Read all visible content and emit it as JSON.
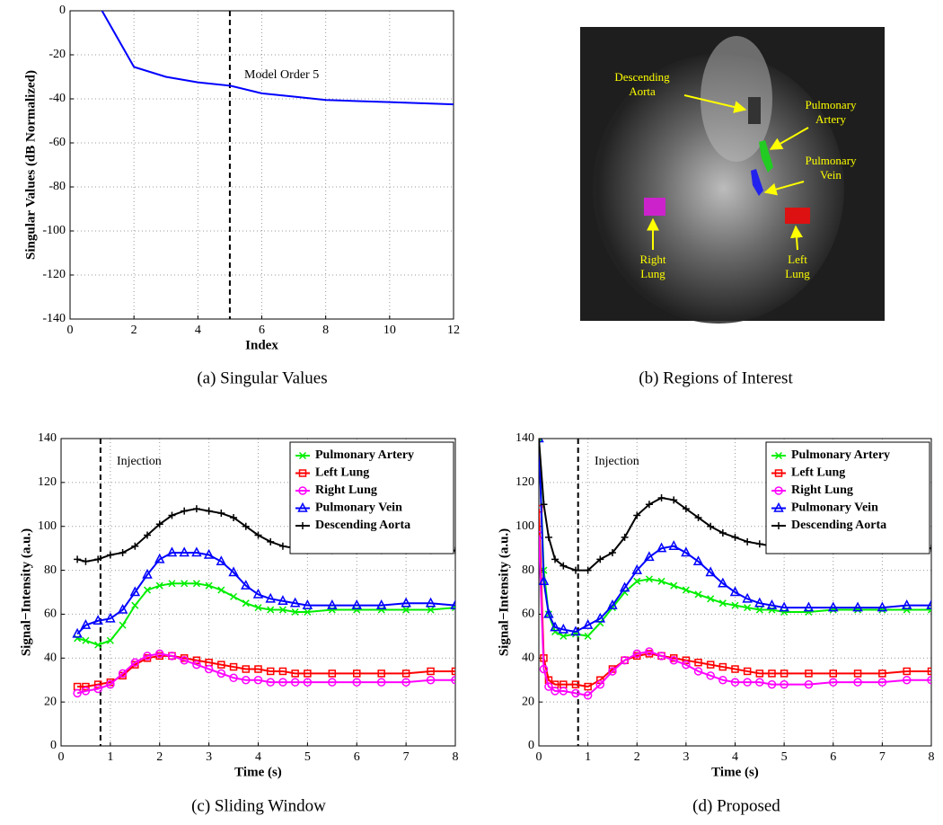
{
  "chart_data": [
    {
      "type": "line",
      "caption": "(a) Singular Values",
      "xlabel": "Index",
      "ylabel": "Singular Values (dB Normalized)",
      "xlim": [
        0,
        12
      ],
      "ylim": [
        -140,
        0
      ],
      "xticks": [
        0,
        2,
        4,
        6,
        8,
        10,
        12
      ],
      "yticks": [
        -140,
        -120,
        -100,
        -80,
        -60,
        -40,
        -20,
        0
      ],
      "grid": true,
      "vline": 5,
      "annotation": "Model Order 5",
      "x": [
        1,
        2,
        3,
        4,
        5,
        6,
        7,
        8,
        9,
        10,
        11,
        12
      ],
      "series": [
        {
          "color": "#0000ff",
          "marker": "none",
          "values": [
            0,
            -25.5,
            -30,
            -32.5,
            -34,
            -37.5,
            -39,
            -40.5,
            -41,
            -41.5,
            -42,
            -42.5
          ]
        }
      ]
    },
    {
      "type": "image",
      "caption": "(b) Regions of Interest",
      "labels": [
        {
          "text": [
            "Descending",
            "Aorta"
          ],
          "color": "#ffff00"
        },
        {
          "text": [
            "Pulmonary",
            "Artery"
          ],
          "color": "#ffff00"
        },
        {
          "text": [
            "Pulmonary",
            "Vein"
          ],
          "color": "#ffff00"
        },
        {
          "text": [
            "Right",
            "Lung"
          ],
          "color": "#ffff00"
        },
        {
          "text": [
            "Left",
            "Lung"
          ],
          "color": "#ffff00"
        }
      ]
    },
    {
      "type": "line",
      "caption": "(c) Sliding Window",
      "xlabel": "Time (s)",
      "ylabel": "Signal−Intensity (a.u.)",
      "xlim": [
        0,
        8
      ],
      "ylim": [
        0,
        140
      ],
      "xticks": [
        0,
        1,
        2,
        3,
        4,
        5,
        6,
        7,
        8
      ],
      "yticks": [
        0,
        20,
        40,
        60,
        80,
        100,
        120,
        140
      ],
      "grid": true,
      "vline": 0.8,
      "annotation": "Injection",
      "legend": "upper right",
      "x": [
        0.33,
        0.5,
        0.75,
        1.0,
        1.25,
        1.5,
        1.75,
        2.0,
        2.25,
        2.5,
        2.75,
        3.0,
        3.25,
        3.5,
        3.75,
        4.0,
        4.25,
        4.5,
        4.75,
        5.0,
        5.5,
        6.0,
        6.5,
        7.0,
        7.5,
        8.0
      ],
      "series": [
        {
          "name": "Pulmonary Artery",
          "color": "#00ee00",
          "marker": "x",
          "values": [
            49,
            48,
            46,
            48,
            55,
            64,
            71,
            73,
            74,
            74,
            74,
            73,
            71,
            68,
            65,
            63,
            62,
            62,
            61,
            61,
            62,
            62,
            62,
            62,
            62,
            63
          ]
        },
        {
          "name": "Left Lung",
          "color": "#ff0000",
          "marker": "s",
          "values": [
            27,
            27,
            28,
            29,
            32,
            37,
            40,
            41,
            41,
            40,
            39,
            38,
            37,
            36,
            35,
            35,
            34,
            34,
            33,
            33,
            33,
            33,
            33,
            33,
            34,
            34
          ]
        },
        {
          "name": "Right Lung",
          "color": "#ff00ff",
          "marker": "o",
          "values": [
            24,
            25,
            26,
            28,
            33,
            38,
            41,
            42,
            41,
            39,
            37,
            35,
            33,
            31,
            30,
            30,
            29,
            29,
            29,
            29,
            29,
            29,
            29,
            29,
            30,
            30
          ]
        },
        {
          "name": "Pulmonary Vein",
          "color": "#0000ff",
          "marker": "^",
          "values": [
            51,
            55,
            57,
            58,
            62,
            70,
            78,
            85,
            88,
            88,
            88,
            87,
            84,
            79,
            73,
            69,
            67,
            66,
            65,
            64,
            64,
            64,
            64,
            65,
            65,
            64
          ]
        },
        {
          "name": "Descending Aorta",
          "color": "#000000",
          "marker": "+",
          "values": [
            85,
            84,
            85,
            87,
            88,
            91,
            96,
            101,
            105,
            107,
            108,
            107,
            106,
            104,
            100,
            96,
            93,
            91,
            90,
            89,
            89,
            89,
            89,
            89,
            89,
            89
          ]
        }
      ]
    },
    {
      "type": "line",
      "caption": "(d) Proposed",
      "xlabel": "Time (s)",
      "ylabel": "Signal−Intensity (a.u.)",
      "xlim": [
        0,
        8
      ],
      "ylim": [
        0,
        140
      ],
      "xticks": [
        0,
        1,
        2,
        3,
        4,
        5,
        6,
        7,
        8
      ],
      "yticks": [
        0,
        20,
        40,
        60,
        80,
        100,
        120,
        140
      ],
      "grid": true,
      "vline": 0.8,
      "annotation": "Injection",
      "legend": "upper right",
      "x": [
        0,
        0.1,
        0.2,
        0.33,
        0.5,
        0.75,
        1.0,
        1.25,
        1.5,
        1.75,
        2.0,
        2.25,
        2.5,
        2.75,
        3.0,
        3.25,
        3.5,
        3.75,
        4.0,
        4.25,
        4.5,
        4.75,
        5.0,
        5.5,
        6.0,
        6.5,
        7.0,
        7.5,
        8.0
      ],
      "series": [
        {
          "name": "Pulmonary Artery",
          "color": "#00ee00",
          "marker": "x",
          "values": [
            140,
            80,
            60,
            52,
            50,
            51,
            50,
            56,
            63,
            70,
            75,
            76,
            75,
            73,
            71,
            69,
            67,
            65,
            64,
            63,
            62,
            62,
            61,
            61,
            62,
            62,
            62,
            62,
            62
          ]
        },
        {
          "name": "Left Lung",
          "color": "#ff0000",
          "marker": "s",
          "values": [
            108,
            40,
            30,
            28,
            28,
            28,
            27,
            30,
            35,
            39,
            41,
            42,
            41,
            40,
            39,
            38,
            37,
            36,
            35,
            34,
            33,
            33,
            33,
            33,
            33,
            33,
            33,
            34,
            34
          ]
        },
        {
          "name": "Right Lung",
          "color": "#ff00ff",
          "marker": "o",
          "values": [
            96,
            35,
            27,
            25,
            25,
            24,
            23,
            28,
            34,
            39,
            42,
            43,
            41,
            39,
            37,
            34,
            32,
            30,
            29,
            29,
            29,
            28,
            28,
            28,
            29,
            29,
            29,
            30,
            30
          ]
        },
        {
          "name": "Pulmonary Vein",
          "color": "#0000ff",
          "marker": "^",
          "values": [
            140,
            75,
            60,
            54,
            53,
            52,
            55,
            58,
            64,
            72,
            80,
            86,
            90,
            91,
            88,
            84,
            79,
            74,
            70,
            67,
            65,
            64,
            63,
            63,
            63,
            63,
            63,
            64,
            64
          ]
        },
        {
          "name": "Descending Aorta",
          "color": "#000000",
          "marker": "+",
          "values": [
            140,
            110,
            95,
            85,
            82,
            80,
            80,
            85,
            88,
            95,
            105,
            110,
            113,
            112,
            108,
            104,
            100,
            97,
            95,
            93,
            92,
            91,
            90,
            90,
            89,
            90,
            89,
            90,
            90
          ]
        }
      ]
    }
  ]
}
